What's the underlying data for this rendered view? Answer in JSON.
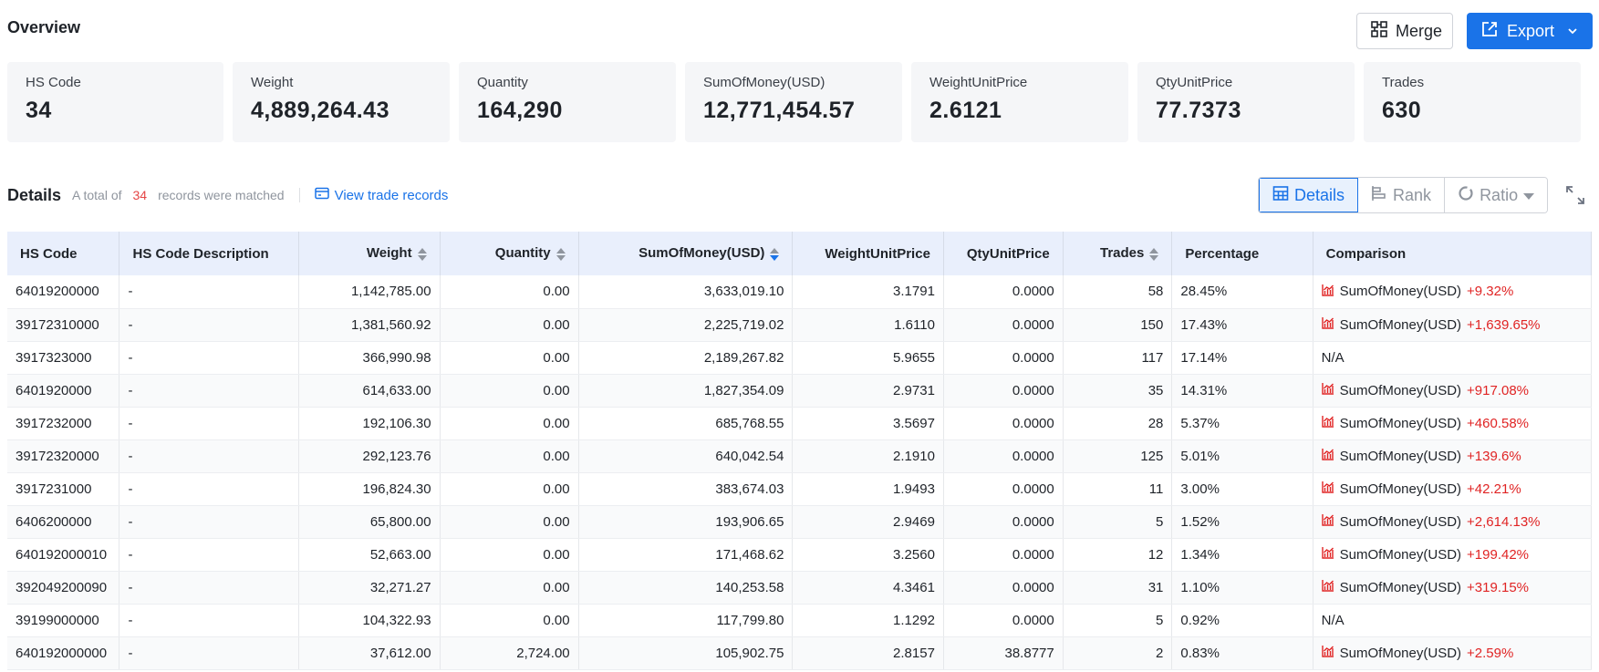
{
  "overview": {
    "title": "Overview",
    "merge_label": "Merge",
    "export_label": "Export"
  },
  "stats": [
    {
      "label": "HS Code",
      "value": "34"
    },
    {
      "label": "Weight",
      "value": "4,889,264.43"
    },
    {
      "label": "Quantity",
      "value": "164,290"
    },
    {
      "label": "SumOfMoney(USD)",
      "value": "12,771,454.57"
    },
    {
      "label": "WeightUnitPrice",
      "value": "2.6121"
    },
    {
      "label": "QtyUnitPrice",
      "value": "77.7373"
    },
    {
      "label": "Trades",
      "value": "630"
    }
  ],
  "details": {
    "title": "Details",
    "prefix": "A total of",
    "count": "34",
    "suffix": "records were matched",
    "view_link": "View trade records"
  },
  "view_toggle": {
    "details": "Details",
    "rank": "Rank",
    "ratio": "Ratio"
  },
  "columns": [
    "HS Code",
    "HS Code Description",
    "Weight",
    "Quantity",
    "SumOfMoney(USD)",
    "WeightUnitPrice",
    "QtyUnitPrice",
    "Trades",
    "Percentage",
    "Comparison"
  ],
  "rows": [
    {
      "code": "64019200000",
      "desc": "-",
      "weight": "1,142,785.00",
      "qty": "0.00",
      "sum": "3,633,019.10",
      "wup": "3.1791",
      "qup": "0.0000",
      "trades": "58",
      "pct": "28.45%",
      "cmp_label": "SumOfMoney(USD)",
      "cmp_value": "+9.32%"
    },
    {
      "code": "39172310000",
      "desc": "-",
      "weight": "1,381,560.92",
      "qty": "0.00",
      "sum": "2,225,719.02",
      "wup": "1.6110",
      "qup": "0.0000",
      "trades": "150",
      "pct": "17.43%",
      "cmp_label": "SumOfMoney(USD)",
      "cmp_value": "+1,639.65%"
    },
    {
      "code": "3917323000",
      "desc": "-",
      "weight": "366,990.98",
      "qty": "0.00",
      "sum": "2,189,267.82",
      "wup": "5.9655",
      "qup": "0.0000",
      "trades": "117",
      "pct": "17.14%",
      "cmp_label": "N/A",
      "cmp_value": ""
    },
    {
      "code": "6401920000",
      "desc": "-",
      "weight": "614,633.00",
      "qty": "0.00",
      "sum": "1,827,354.09",
      "wup": "2.9731",
      "qup": "0.0000",
      "trades": "35",
      "pct": "14.31%",
      "cmp_label": "SumOfMoney(USD)",
      "cmp_value": "+917.08%"
    },
    {
      "code": "3917232000",
      "desc": "-",
      "weight": "192,106.30",
      "qty": "0.00",
      "sum": "685,768.55",
      "wup": "3.5697",
      "qup": "0.0000",
      "trades": "28",
      "pct": "5.37%",
      "cmp_label": "SumOfMoney(USD)",
      "cmp_value": "+460.58%"
    },
    {
      "code": "39172320000",
      "desc": "-",
      "weight": "292,123.76",
      "qty": "0.00",
      "sum": "640,042.54",
      "wup": "2.1910",
      "qup": "0.0000",
      "trades": "125",
      "pct": "5.01%",
      "cmp_label": "SumOfMoney(USD)",
      "cmp_value": "+139.6%"
    },
    {
      "code": "3917231000",
      "desc": "-",
      "weight": "196,824.30",
      "qty": "0.00",
      "sum": "383,674.03",
      "wup": "1.9493",
      "qup": "0.0000",
      "trades": "11",
      "pct": "3.00%",
      "cmp_label": "SumOfMoney(USD)",
      "cmp_value": "+42.21%"
    },
    {
      "code": "6406200000",
      "desc": "-",
      "weight": "65,800.00",
      "qty": "0.00",
      "sum": "193,906.65",
      "wup": "2.9469",
      "qup": "0.0000",
      "trades": "5",
      "pct": "1.52%",
      "cmp_label": "SumOfMoney(USD)",
      "cmp_value": "+2,614.13%"
    },
    {
      "code": "640192000010",
      "desc": "-",
      "weight": "52,663.00",
      "qty": "0.00",
      "sum": "171,468.62",
      "wup": "3.2560",
      "qup": "0.0000",
      "trades": "12",
      "pct": "1.34%",
      "cmp_label": "SumOfMoney(USD)",
      "cmp_value": "+199.42%"
    },
    {
      "code": "392049200090",
      "desc": "-",
      "weight": "32,271.27",
      "qty": "0.00",
      "sum": "140,253.58",
      "wup": "4.3461",
      "qup": "0.0000",
      "trades": "31",
      "pct": "1.10%",
      "cmp_label": "SumOfMoney(USD)",
      "cmp_value": "+319.15%"
    },
    {
      "code": "39199000000",
      "desc": "-",
      "weight": "104,322.93",
      "qty": "0.00",
      "sum": "117,799.80",
      "wup": "1.1292",
      "qup": "0.0000",
      "trades": "5",
      "pct": "0.92%",
      "cmp_label": "N/A",
      "cmp_value": ""
    },
    {
      "code": "640192000000",
      "desc": "-",
      "weight": "37,612.00",
      "qty": "2,724.00",
      "sum": "105,902.75",
      "wup": "2.8157",
      "qup": "38.8777",
      "trades": "2",
      "pct": "0.83%",
      "cmp_label": "SumOfMoney(USD)",
      "cmp_value": "+2.59%"
    }
  ],
  "colors": {
    "accent": "#1a73e8",
    "up": "#e02424",
    "header_bg": "#e9effc"
  },
  "icons": {
    "merge": "merge-icon",
    "export": "export-icon",
    "view": "card-icon",
    "table": "table-icon",
    "rank": "bar-rank-icon",
    "ratio": "ring-icon",
    "expand": "expand-icon",
    "trend": "trend-chart-icon"
  }
}
